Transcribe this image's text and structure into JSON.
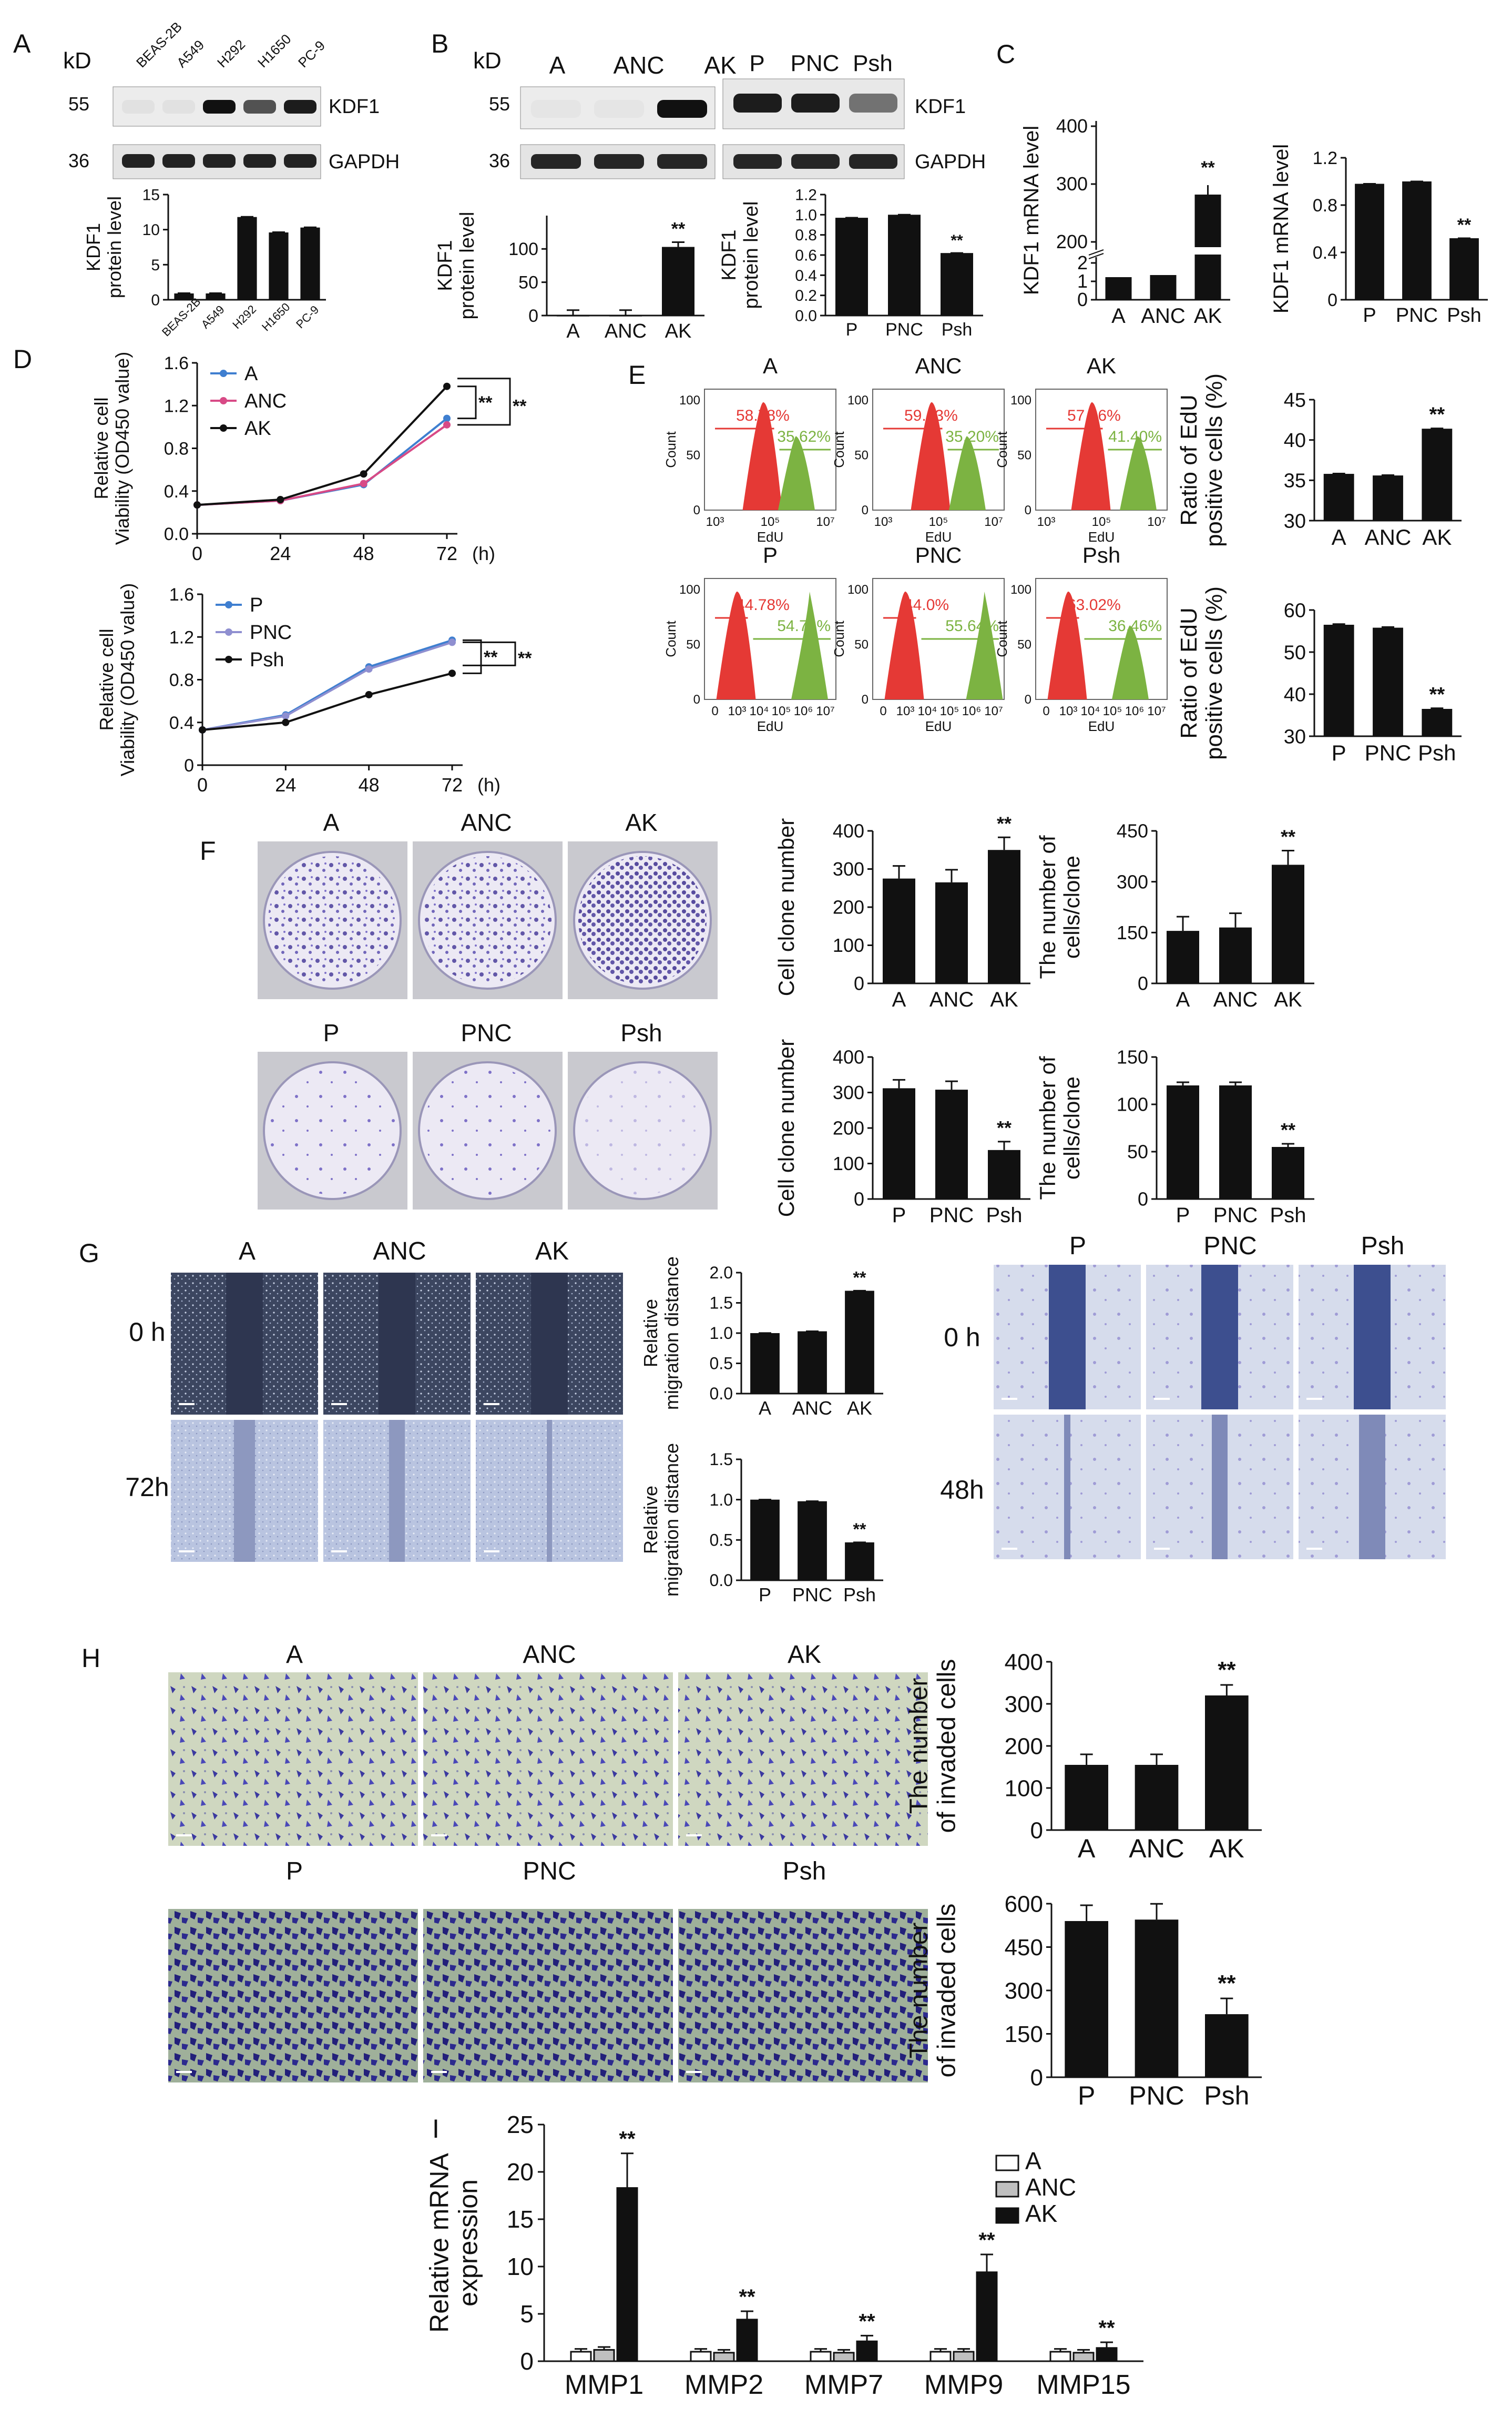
{
  "figure": {
    "colors": {
      "black": "#111111",
      "red": "#e53935",
      "green": "#7cb342",
      "blue": "#3f7fd0",
      "pink": "#d84a86",
      "purple": "#8f8fd0",
      "gray": "#bfbfbf"
    },
    "panelA": {
      "letter": "A",
      "kd": "kD",
      "m55": "55",
      "m36": "36",
      "lanes": [
        "BEAS-2B",
        "A549",
        "H292",
        "H1650",
        "PC-9"
      ],
      "band1": "KDF1",
      "band2": "GAPDH",
      "chart": {
        "type": "bar",
        "categories": [
          "BEAS-2B",
          "A549",
          "H292",
          "H1650",
          "PC-9"
        ],
        "values": [
          0.9,
          0.9,
          11.8,
          9.6,
          10.3
        ],
        "ticks": [
          "0",
          "5",
          "10",
          "15"
        ],
        "ylabel": "KDF1\nprotein level",
        "ylim": [
          0,
          15
        ]
      }
    },
    "panelB": {
      "letter": "B",
      "kd": "kD",
      "m55": "55",
      "m36": "36",
      "lanes1": [
        "A",
        "ANC",
        "AK"
      ],
      "lanes2": [
        "P",
        "PNC",
        "Psh"
      ],
      "band1": "KDF1",
      "band2": "GAPDH",
      "chart1": {
        "type": "bar",
        "categories": [
          "A",
          "ANC",
          "AK"
        ],
        "values": [
          1,
          1,
          103
        ],
        "ticks": [
          "0",
          "50",
          "100"
        ],
        "ylim": [
          0,
          150
        ],
        "ylabel": "KDF1\nprotein level",
        "sig": "**"
      },
      "chart2": {
        "type": "bar",
        "categories": [
          "P",
          "PNC",
          "Psh"
        ],
        "values": [
          0.97,
          1.0,
          0.62
        ],
        "ticks": [
          "0.0",
          "0.2",
          "0.4",
          "0.6",
          "0.8",
          "1.0",
          "1.2"
        ],
        "ylim": [
          0,
          1.2
        ],
        "ylabel": "KDF1\nprotein level",
        "sig": "**"
      }
    },
    "panelC": {
      "letter": "C",
      "chart1": {
        "type": "bar",
        "categories": [
          "A",
          "ANC",
          "AK"
        ],
        "values": [
          1,
          1.1,
          280
        ],
        "ticks": [
          "0",
          "1",
          "2",
          "200",
          "300",
          "400"
        ],
        "ylabel": "KDF1 mRNA level",
        "sig": "**"
      },
      "chart2": {
        "type": "bar",
        "categories": [
          "P",
          "PNC",
          "Psh"
        ],
        "values": [
          0.98,
          1.0,
          0.52
        ],
        "ticks": [
          "0",
          "0.4",
          "0.8",
          "1.2"
        ],
        "ylim": [
          0,
          1.2
        ],
        "ylabel": "KDF1 mRNA level",
        "sig": "**"
      }
    },
    "panelD": {
      "letter": "D",
      "ylabel": "Relative cell\nViability (OD450 value)",
      "xunit": "(h)",
      "chart1": {
        "type": "line",
        "x": [
          0,
          24,
          48,
          72
        ],
        "xticks": [
          "0",
          "24",
          "48",
          "72"
        ],
        "yticks": [
          "0.0",
          "0.4",
          "0.8",
          "1.2",
          "1.6"
        ],
        "ylim": [
          0,
          1.6
        ],
        "series": [
          {
            "name": "A",
            "values": [
              0.27,
              0.31,
              0.46,
              1.08
            ]
          },
          {
            "name": "ANC",
            "values": [
              0.27,
              0.31,
              0.47,
              1.02
            ]
          },
          {
            "name": "AK",
            "values": [
              0.27,
              0.32,
              0.56,
              1.38
            ]
          }
        ],
        "sig1": "**",
        "sig2": "**"
      },
      "chart2": {
        "type": "line",
        "x": [
          0,
          24,
          48,
          72
        ],
        "xticks": [
          "0",
          "24",
          "48",
          "72"
        ],
        "yticks": [
          "0",
          "0.4",
          "0.8",
          "1.2",
          "1.6"
        ],
        "ylim": [
          0,
          1.6
        ],
        "series": [
          {
            "name": "P",
            "values": [
              0.33,
              0.47,
              0.92,
              1.17
            ]
          },
          {
            "name": "PNC",
            "values": [
              0.33,
              0.46,
              0.9,
              1.15
            ]
          },
          {
            "name": "Psh",
            "values": [
              0.33,
              0.4,
              0.66,
              0.86
            ]
          }
        ],
        "sig1": "**",
        "sig2": "**"
      }
    },
    "panelE": {
      "letter": "E",
      "countLabel": "Count",
      "eduLabel": "EdU",
      "yticks": [
        "0",
        "50",
        "100"
      ],
      "xticksTop": [
        "10³",
        "10⁵",
        "10⁷"
      ],
      "xticksBottom": [
        "0",
        "10³",
        "10⁴",
        "10⁵",
        "10⁶",
        "10⁷"
      ],
      "flows": [
        {
          "title": "A",
          "red": "58.78%",
          "green": "35.62%"
        },
        {
          "title": "ANC",
          "red": "59.63%",
          "green": "35.20%"
        },
        {
          "title": "AK",
          "red": "57.66%",
          "green": "41.40%"
        },
        {
          "title": "P",
          "red": "44.78%",
          "green": "54.74%"
        },
        {
          "title": "PNC",
          "red": "44.0%",
          "green": "55.64%"
        },
        {
          "title": "Psh",
          "red": "63.02%",
          "green": "36.46%"
        }
      ],
      "ylabel": "Ratio of EdU\npositive cells (%)",
      "chart1": {
        "type": "bar",
        "categories": [
          "A",
          "ANC",
          "AK"
        ],
        "values": [
          35.8,
          35.6,
          41.4
        ],
        "ticks": [
          "30",
          "35",
          "40",
          "45"
        ],
        "ylim": [
          30,
          45
        ],
        "sig": "**"
      },
      "chart2": {
        "type": "bar",
        "categories": [
          "P",
          "PNC",
          "Psh"
        ],
        "values": [
          56.5,
          55.8,
          36.5
        ],
        "ticks": [
          "30",
          "40",
          "50",
          "60"
        ],
        "ylim": [
          30,
          60
        ],
        "sig": "**"
      }
    },
    "panelF": {
      "letter": "F",
      "labelsTop": [
        "A",
        "ANC",
        "AK"
      ],
      "labelsBottom": [
        "P",
        "PNC",
        "Psh"
      ],
      "ylabelCount": "Cell clone number",
      "ylabelCells": "The number of\ncells/clone",
      "chart1": {
        "type": "bar",
        "categories": [
          "A",
          "ANC",
          "AK"
        ],
        "values": [
          275,
          265,
          350
        ],
        "ticks": [
          "0",
          "100",
          "200",
          "300",
          "400"
        ],
        "ylim": [
          0,
          400
        ],
        "sig": "**"
      },
      "chart2": {
        "type": "bar",
        "categories": [
          "A",
          "ANC",
          "AK"
        ],
        "values": [
          155,
          165,
          350
        ],
        "ticks": [
          "0",
          "150",
          "300",
          "450"
        ],
        "ylim": [
          0,
          450
        ],
        "sig": "**"
      },
      "chart3": {
        "type": "bar",
        "categories": [
          "P",
          "PNC",
          "Psh"
        ],
        "values": [
          312,
          308,
          138
        ],
        "ticks": [
          "0",
          "100",
          "200",
          "300",
          "400"
        ],
        "ylim": [
          0,
          400
        ],
        "sig": "**"
      },
      "chart4": {
        "type": "bar",
        "categories": [
          "P",
          "PNC",
          "Psh"
        ],
        "values": [
          120,
          120,
          55
        ],
        "ticks": [
          "0",
          "50",
          "100",
          "150"
        ],
        "ylim": [
          0,
          150
        ],
        "sig": "**"
      }
    },
    "panelG": {
      "letter": "G",
      "labels1": [
        "A",
        "ANC",
        "AK"
      ],
      "labels2": [
        "P",
        "PNC",
        "Psh"
      ],
      "t0": "0 h",
      "t72": "72h",
      "t0b": "0 h",
      "t48": "48h",
      "ylabel": "Relative\nmigration distance",
      "chart1": {
        "type": "bar",
        "categories": [
          "A",
          "ANC",
          "AK"
        ],
        "values": [
          1.0,
          1.03,
          1.7
        ],
        "ticks": [
          "0.0",
          "0.5",
          "1.0",
          "1.5",
          "2.0"
        ],
        "ylim": [
          0,
          2.0
        ],
        "sig": "**"
      },
      "chart2": {
        "type": "bar",
        "categories": [
          "P",
          "PNC",
          "Psh"
        ],
        "values": [
          1.0,
          0.98,
          0.47
        ],
        "ticks": [
          "0.0",
          "0.5",
          "1.0",
          "1.5"
        ],
        "ylim": [
          0,
          1.5
        ],
        "sig": "**"
      }
    },
    "panelH": {
      "letter": "H",
      "labelsTop": [
        "A",
        "ANC",
        "AK"
      ],
      "labelsBottom": [
        "P",
        "PNC",
        "Psh"
      ],
      "ylabel": "The number\nof invaded cells",
      "chart1": {
        "type": "bar",
        "categories": [
          "A",
          "ANC",
          "AK"
        ],
        "values": [
          155,
          155,
          320
        ],
        "ticks": [
          "0",
          "100",
          "200",
          "300",
          "400"
        ],
        "ylim": [
          0,
          400
        ],
        "sig": "**"
      },
      "chart2": {
        "type": "bar",
        "categories": [
          "P",
          "PNC",
          "Psh"
        ],
        "values": [
          540,
          545,
          218
        ],
        "ticks": [
          "0",
          "150",
          "300",
          "450",
          "600"
        ],
        "ylim": [
          0,
          600
        ],
        "sig": "**"
      }
    },
    "panelI": {
      "letter": "I",
      "chart": {
        "type": "bar",
        "categories": [
          "MMP1",
          "MMP2",
          "MMP7",
          "MMP9",
          "MMP15"
        ],
        "series": [
          {
            "name": "A",
            "values": [
              1.0,
              1.0,
              1.0,
              1.0,
              1.0
            ]
          },
          {
            "name": "ANC",
            "values": [
              1.2,
              0.9,
              0.9,
              1.0,
              0.9
            ]
          },
          {
            "name": "AK",
            "values": [
              18.3,
              4.4,
              2.1,
              9.4,
              1.4
            ]
          }
        ],
        "ticks": [
          "0",
          "5",
          "10",
          "15",
          "20",
          "25"
        ],
        "ylim": [
          0,
          25
        ],
        "ylabel": "Relative mRNA\nexpression",
        "sig": "**"
      }
    }
  }
}
